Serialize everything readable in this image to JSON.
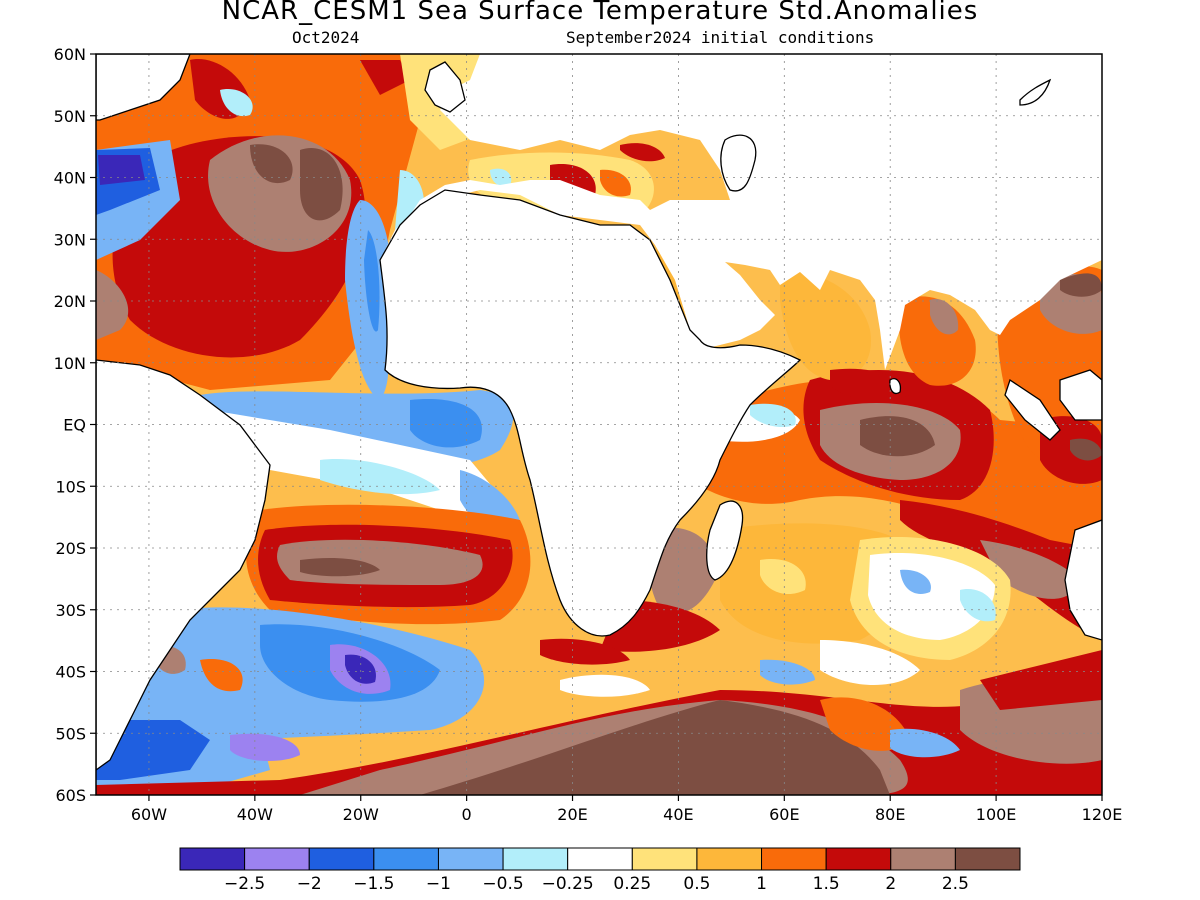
{
  "header": {
    "title": "NCAR_CESM1 Sea Surface Temperature Std.Anomalies",
    "valid_month": "Oct2024",
    "init_conditions": "September2024 initial conditions"
  },
  "map": {
    "lon_range": [
      -70,
      120
    ],
    "lat_range": [
      -60,
      60
    ],
    "lat_labels": [
      "60N",
      "50N",
      "40N",
      "30N",
      "20N",
      "10N",
      "EQ",
      "10S",
      "20S",
      "30S",
      "40S",
      "50S",
      "60S"
    ],
    "lon_labels": [
      "60W",
      "40W",
      "20W",
      "0",
      "20E",
      "40E",
      "60E",
      "80E",
      "100E",
      "120E"
    ],
    "grid": true
  },
  "colorbar": {
    "colors": [
      "#3a27b8",
      "#9c82f0",
      "#1f5fe0",
      "#3b8ff0",
      "#78b4f6",
      "#b2eefa",
      "#ffffff",
      "#ffe27a",
      "#fdb73a",
      "#f96b0a",
      "#c40a0a",
      "#ad8072",
      "#7d4e42"
    ],
    "labels": [
      "−2.5",
      "−2",
      "−1.5",
      "−1",
      "−0.5",
      "−0.25",
      "0.25",
      "0.5",
      "1",
      "1.5",
      "2",
      "2.5"
    ]
  }
}
